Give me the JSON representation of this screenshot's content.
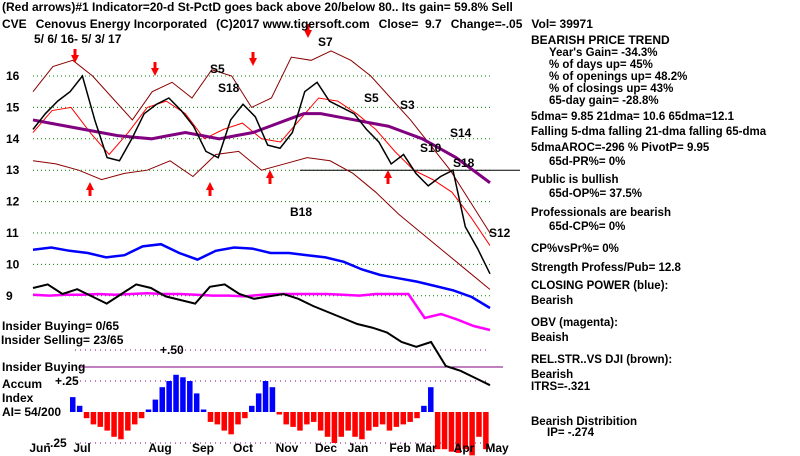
{
  "header": {
    "line1": "(Red arrows)#1 Indicator=20-d St-PctD goes back above 20/below 80.. Its gain= 59.8% Sell",
    "ticker": "CVE",
    "company": "Cenovus Energy Incorporated",
    "copyright": "(C)2017 www.tigersoft.com",
    "close": "Close=  9.7",
    "change": "Change=-.05",
    "vol": "Vol= 39971",
    "date_range": "5/ 6/ 16- 5/ 3/ 17"
  },
  "stats": {
    "trend": "BEARISH PRICE TREND",
    "year_gain": "Year's Gain= -34.3%",
    "days_up": "% of days up= 45%",
    "openings_up": "% of openings up= 48.2%",
    "closings_up": "% of closings up= 43%",
    "gain65": "65-day gain= -28.8%",
    "dma": "5dma= 9.85 21dma= 10.6 65dma=12.1",
    "falling": "Falling 5-dma falling 21-dma falling 65-dma",
    "aroc": "5dmaAROC=-296 %  PivotP= 9.95",
    "pr": "65d-PR%= 0%",
    "public": "Public is bullish",
    "op": "65d-OP%= 37.5%",
    "pros": "Professionals are bearish",
    "cp": "65d-CP%= 0%",
    "cpvspr": "CP%vsPr%=  0%",
    "strength": "Strength Profess/Pub= 12.8",
    "cp_title": "CLOSING POWER (blue):",
    "cp_val": "Bearish",
    "obv_title": "OBV (magenta):",
    "obv_val": "Beaish",
    "rs_title": "REL.STR..VS DJI (brown):",
    "rs_val": "Bearish",
    "itrs": "ITRS=-.321",
    "dist": "Bearish Distribition",
    "ip": "IP= -.274"
  },
  "insider": {
    "buying": "Insider Buying= 0/65",
    "selling": "Insider Selling= 23/65",
    "label": "Insider Buying",
    "accum": "Accum",
    "index": "Index",
    "ai": "AI= 54/200"
  },
  "chart_data": {
    "type": "line",
    "title": "CVE Cenovus Energy Incorporated",
    "y_ticks": [
      "16",
      "15",
      "14",
      "13",
      "12",
      "11",
      "10",
      "9"
    ],
    "ai_ticks": [
      "+.50",
      "+.25",
      "-.25"
    ],
    "x_ticks": [
      "Jun",
      "Jul",
      "Aug",
      "Sep",
      "Oct",
      "Nov",
      "Dec",
      "Jan",
      "Feb",
      "Mar",
      "Apr",
      "May"
    ],
    "ylim": [
      8.7,
      17
    ],
    "price": [
      14.3,
      14.8,
      15.2,
      15.5,
      16.0,
      14.6,
      13.4,
      13.3,
      14.0,
      14.8,
      15.1,
      15.3,
      14.9,
      14.4,
      13.6,
      13.4,
      14.6,
      15.1,
      14.7,
      13.8,
      13.7,
      14.2,
      15.5,
      15.8,
      15.2,
      15.0,
      14.8,
      14.3,
      13.9,
      13.2,
      13.5,
      12.9,
      12.5,
      12.8,
      13.0,
      11.2,
      10.5,
      9.7
    ],
    "dma65": [
      14.6,
      14.5,
      14.4,
      14.3,
      14.2,
      14.1,
      14.05,
      14.0,
      14.1,
      14.2,
      14.1,
      14.0,
      14.1,
      14.2,
      14.4,
      14.6,
      14.8,
      14.8,
      14.7,
      14.6,
      14.5,
      14.4,
      14.2,
      14.0,
      13.7,
      13.4,
      13.0,
      12.6
    ],
    "upper_band": [
      15.5,
      16.3,
      16.5,
      16.0,
      15.3,
      14.6,
      15.5,
      15.8,
      15.3,
      16.2,
      16.0,
      15.0,
      15.3,
      16.6,
      16.5,
      16.8,
      16.5,
      16.0,
      15.3,
      14.6,
      13.8,
      13.0,
      12.0,
      11.0
    ],
    "lower_band": [
      13.3,
      13.2,
      13.0,
      12.7,
      12.9,
      13.0,
      13.3,
      12.8,
      13.5,
      13.6,
      13.0,
      13.2,
      13.4,
      13.3,
      12.9,
      12.3,
      11.6,
      11.0,
      10.4,
      9.8,
      9.2
    ],
    "dma21": [
      14.2,
      14.9,
      15.0,
      14.2,
      13.5,
      14.2,
      15.0,
      15.2,
      14.8,
      14.0,
      14.3,
      14.5,
      14.0,
      13.9,
      14.6,
      15.3,
      15.2,
      14.8,
      14.3,
      13.6,
      13.0,
      12.7,
      12.3,
      11.5,
      10.6
    ],
    "closing_power": [
      73,
      75,
      72,
      70,
      66,
      68,
      76,
      78,
      70,
      64,
      72,
      75,
      74,
      70,
      70,
      68,
      66,
      62,
      55,
      50,
      47,
      44,
      40,
      36,
      30,
      20
    ],
    "obv": [
      69,
      68,
      69,
      69,
      70,
      69,
      70,
      71,
      70,
      70,
      69,
      68,
      68,
      67,
      69,
      70,
      70,
      70,
      70,
      69,
      68,
      70,
      70,
      70,
      40,
      45,
      38,
      30,
      25
    ],
    "rel_strength": [
      85,
      88,
      80,
      84,
      78,
      72,
      80,
      88,
      85,
      78,
      75,
      72,
      86,
      88,
      80,
      76,
      78,
      80,
      76,
      70,
      65,
      60,
      55,
      52,
      48,
      40,
      36,
      40,
      20,
      16,
      10,
      4
    ],
    "accum_index": [
      0.12,
      0.05,
      -0.05,
      -0.1,
      -0.12,
      -0.15,
      -0.2,
      -0.22,
      -0.15,
      -0.1,
      -0.05,
      0.02,
      0.1,
      0.2,
      0.25,
      0.3,
      0.28,
      0.25,
      0.15,
      0.02,
      -0.08,
      -0.1,
      -0.15,
      -0.18,
      -0.1,
      -0.05,
      0.05,
      0.15,
      0.25,
      0.2,
      -0.02,
      -0.1,
      -0.12,
      -0.15,
      -0.1,
      -0.08,
      -0.15,
      -0.2,
      -0.25,
      -0.2,
      -0.15,
      -0.2,
      -0.22,
      -0.15,
      -0.12,
      -0.1,
      -0.15,
      -0.12,
      -0.1,
      -0.08,
      -0.05,
      0.05,
      0.2,
      -0.3,
      -0.3,
      -0.32,
      -0.33,
      -0.3,
      -0.35,
      -0.2,
      -0.3
    ],
    "signals": [
      "S5",
      "S18",
      "S5",
      "S3",
      "S14",
      "S10",
      "S18",
      "S12",
      "B18",
      "S7"
    ],
    "colors": {
      "price": "#000000",
      "dma65": "#800080",
      "bands": "#8b0000",
      "dma21": "#ff0000",
      "cp": "#0000ff",
      "obv": "#ff00ff",
      "rs": "#000000",
      "ai_pos": "#0000ff",
      "ai_neg": "#ff0000",
      "grid": "#008000"
    }
  }
}
